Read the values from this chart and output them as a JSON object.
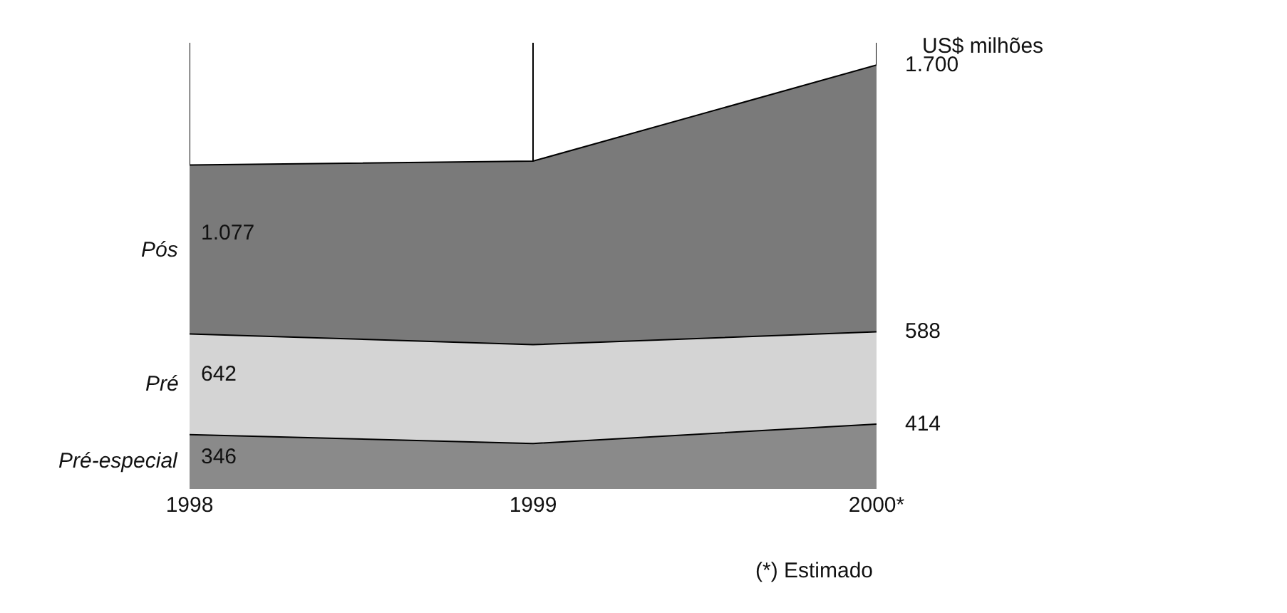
{
  "chart_data": {
    "type": "area",
    "stacked": true,
    "categories": [
      "1998",
      "1999",
      "2000*"
    ],
    "series": [
      {
        "name": "Pré-especial",
        "color": "#8a8a8a",
        "values": [
          346,
          290,
          414
        ],
        "value_labels": [
          "346",
          null,
          "414"
        ]
      },
      {
        "name": "Pré",
        "color": "#d4d4d4",
        "values": [
          642,
          630,
          588
        ],
        "value_labels": [
          "642",
          null,
          "588"
        ]
      },
      {
        "name": "Pós",
        "color": "#7a7a7a",
        "values": [
          1077,
          1170,
          1700
        ],
        "value_labels": [
          "1.077",
          null,
          "1.700"
        ]
      }
    ],
    "grid": "x",
    "legend": false,
    "tick_labels": "x",
    "annotations": [
      "US$ milhões",
      "(*) Estimado"
    ]
  }
}
